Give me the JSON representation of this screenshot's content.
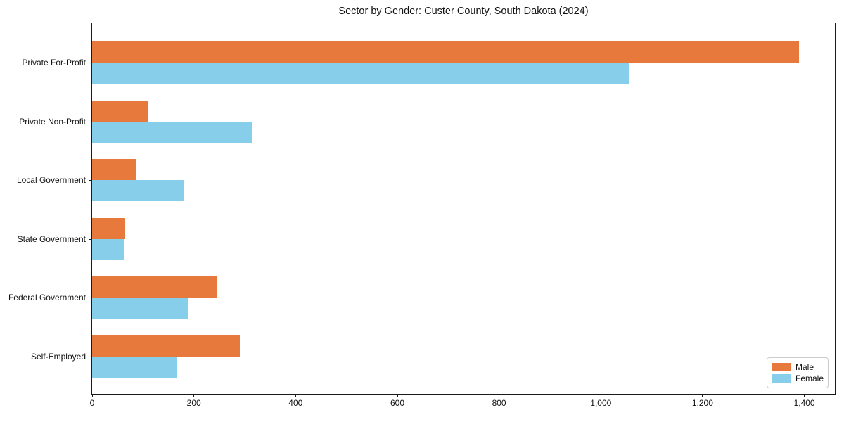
{
  "title": "Sector by Gender: Custer County, South Dakota (2024)",
  "colors": {
    "male": "#E8793C",
    "female": "#87CEEB",
    "axis": "#1a1a1a",
    "background": "#ffffff"
  },
  "legend": {
    "position": "lower right",
    "items": [
      {
        "label": "Male",
        "color": "#E8793C"
      },
      {
        "label": "Female",
        "color": "#87CEEB"
      }
    ]
  },
  "chart_data": {
    "type": "bar",
    "orientation": "horizontal",
    "title": "Sector by Gender: Custer County, South Dakota (2024)",
    "categories": [
      "Private For-Profit",
      "Private Non-Profit",
      "Local Government",
      "State Government",
      "Federal Government",
      "Self-Employed"
    ],
    "series": [
      {
        "name": "Male",
        "color": "#E8793C",
        "values": [
          1390,
          110,
          85,
          65,
          245,
          290
        ]
      },
      {
        "name": "Female",
        "color": "#87CEEB",
        "values": [
          1056,
          315,
          180,
          62,
          188,
          166
        ]
      }
    ],
    "xlabel": "",
    "ylabel": "",
    "xlim": [
      0,
      1460
    ],
    "xticks": [
      0,
      200,
      400,
      600,
      800,
      1000,
      1200,
      1400
    ],
    "xtick_labels": [
      "0",
      "200",
      "400",
      "600",
      "800",
      "1,000",
      "1,200",
      "1,400"
    ],
    "grid": false,
    "legend_position": "lower right"
  }
}
